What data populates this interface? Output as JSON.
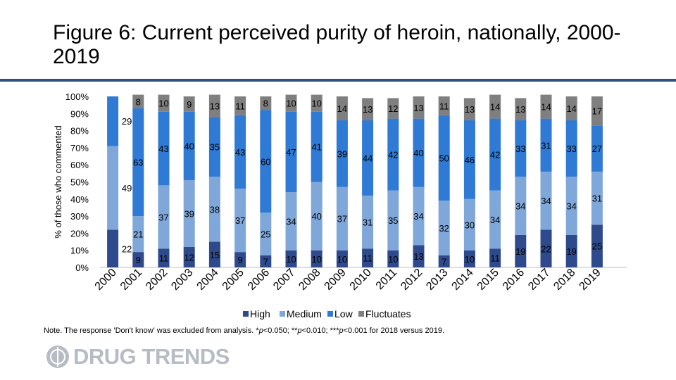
{
  "slide": {
    "title": "Figure 6: Current perceived purity of heroin, nationally, 2000-2019",
    "note_prefix": "Note. The response 'Don't know' was excluded from analysis. *",
    "note_p1": "p",
    "note_mid1": "<0.050; **",
    "note_p2": "p",
    "note_mid2": "<0.010; ***",
    "note_p3": "p",
    "note_suffix": "<0.001 for 2018 versus 2019.",
    "logo_text": "DRUG TRENDS",
    "logo_icon": "globe-icon"
  },
  "chart_data": {
    "type": "bar",
    "stacked": true,
    "normalized": true,
    "ylabel": "% of those who commented",
    "ylim": [
      0,
      100
    ],
    "yticks": [
      "0%",
      "10%",
      "20%",
      "30%",
      "40%",
      "50%",
      "60%",
      "70%",
      "80%",
      "90%",
      "100%"
    ],
    "categories": [
      "2000",
      "2001",
      "2002",
      "2003",
      "2004",
      "2005",
      "2006",
      "2007",
      "2008",
      "2009",
      "2010",
      "2011",
      "2012",
      "2013",
      "2014",
      "2015",
      "2016",
      "2017",
      "2018",
      "2019"
    ],
    "series": [
      {
        "name": "High",
        "color": "#2e4a8c",
        "values": [
          22,
          9,
          11,
          12,
          15,
          9,
          7,
          10,
          10,
          10,
          11,
          10,
          13,
          7,
          10,
          11,
          19,
          22,
          19,
          25
        ]
      },
      {
        "name": "Medium",
        "color": "#7fa7d9",
        "values": [
          49,
          21,
          37,
          39,
          38,
          37,
          25,
          34,
          40,
          37,
          31,
          35,
          34,
          32,
          30,
          34,
          34,
          34,
          34,
          31
        ]
      },
      {
        "name": "Low",
        "color": "#2f7ad4",
        "values": [
          29,
          63,
          43,
          40,
          35,
          43,
          60,
          47,
          41,
          39,
          44,
          42,
          40,
          50,
          46,
          42,
          33,
          31,
          33,
          27
        ]
      },
      {
        "name": "Fluctuates",
        "color": "#7f7f7f",
        "values": [
          0,
          8,
          10,
          9,
          13,
          11,
          8,
          10,
          10,
          14,
          13,
          12,
          13,
          11,
          13,
          14,
          13,
          14,
          14,
          17
        ]
      }
    ],
    "legend": "bottom",
    "grid": false
  }
}
